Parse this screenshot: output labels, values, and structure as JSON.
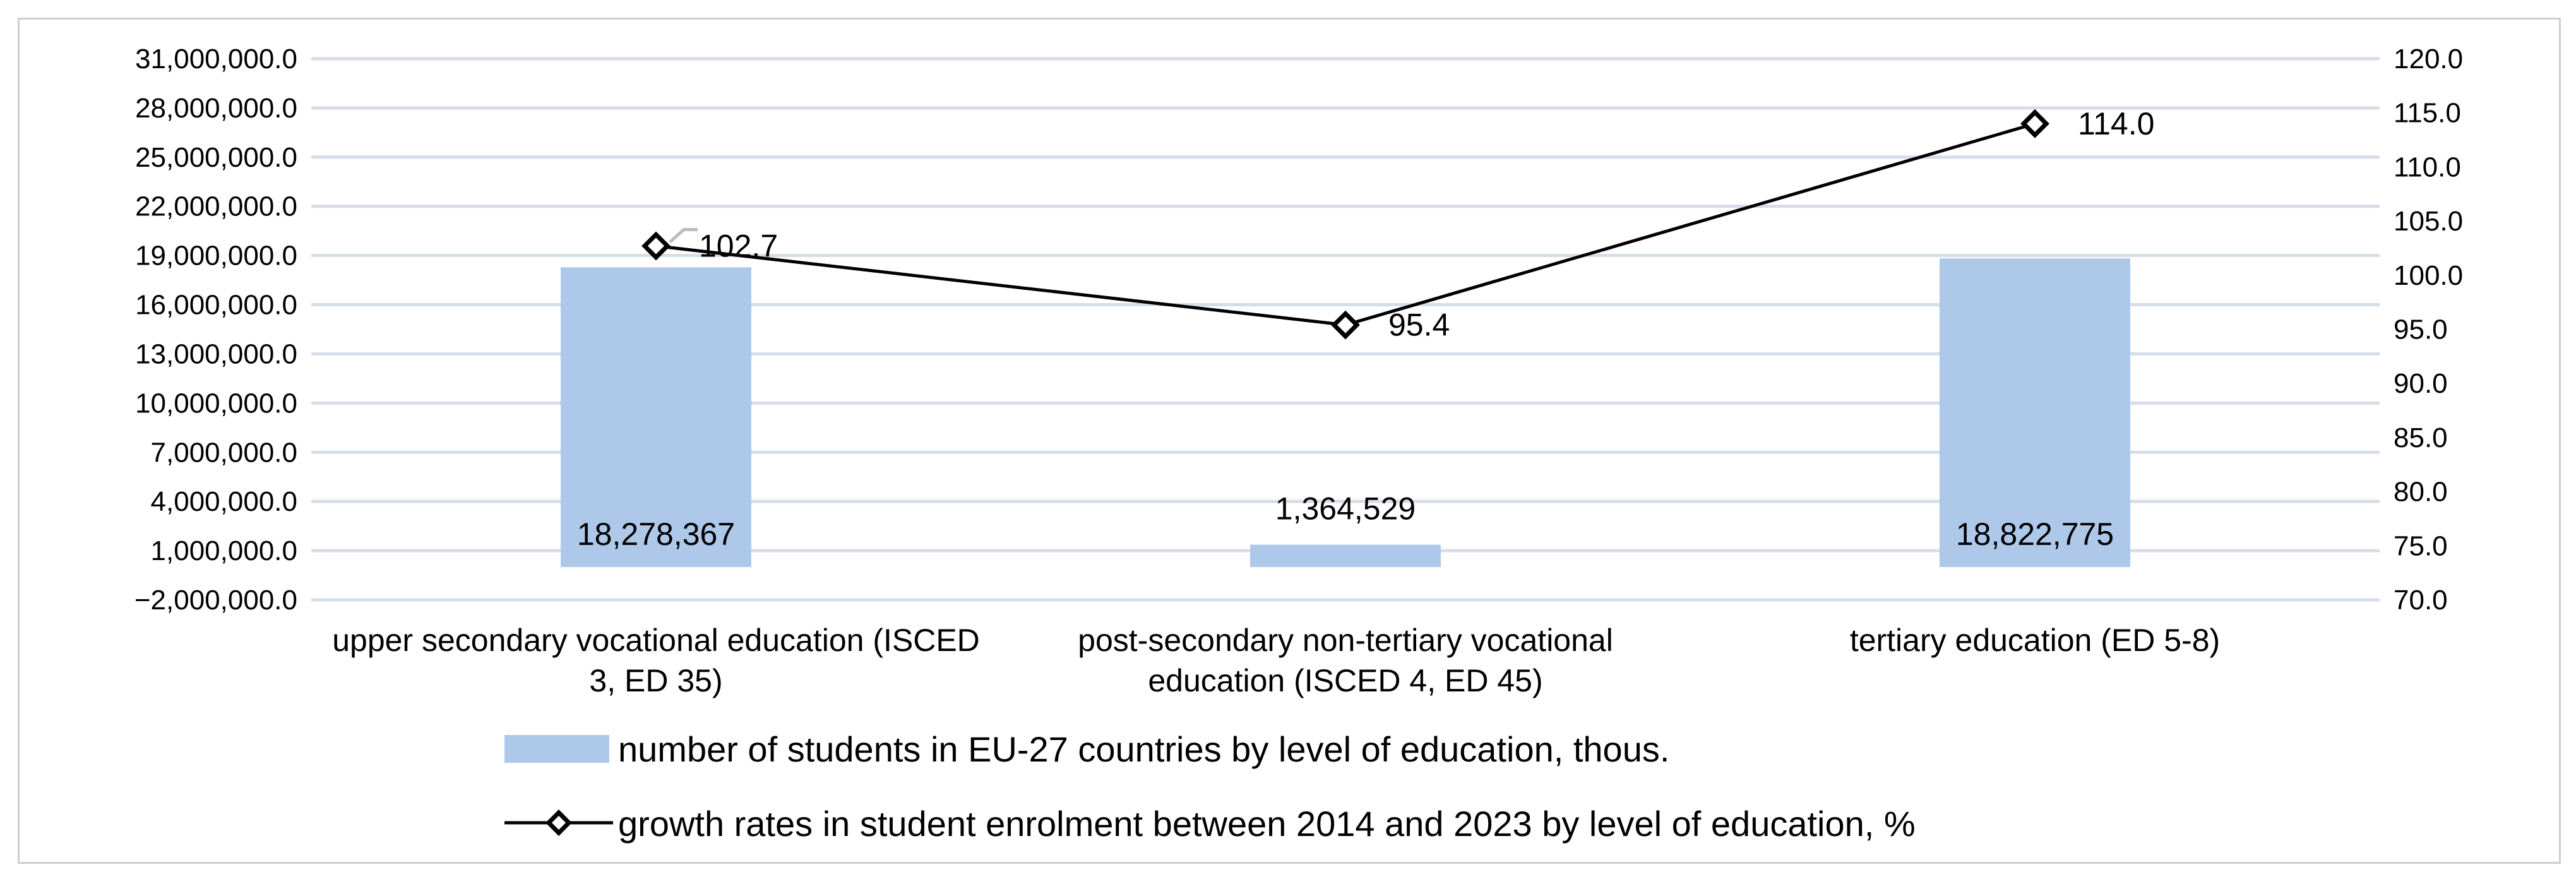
{
  "chart_data": {
    "type": "bar",
    "categories": [
      "upper secondary vocational education (ISCED 3, ED 35)",
      "post-secondary non-tertiary vocational education (ISCED 4, ED 45)",
      "tertiary education  (ED 5-8)"
    ],
    "category_lines": [
      [
        "upper secondary vocational education (ISCED",
        "3, ED 35)"
      ],
      [
        "post-secondary non-tertiary vocational",
        "education (ISCED 4, ED 45)"
      ],
      [
        "tertiary education  (ED 5-8)"
      ]
    ],
    "series": [
      {
        "name": "number of students in EU-27 countries by level of education, thous.",
        "type": "bar",
        "axis": "left",
        "values": [
          18278367,
          1364529,
          18822775
        ],
        "labels": [
          "18,278,367",
          "1,364,529",
          "18,822,775"
        ],
        "color": "#aec8e9"
      },
      {
        "name": "growth rates in student enrolment between 2014 and 2023 by level of education, %",
        "type": "line",
        "axis": "right",
        "values": [
          102.7,
          95.4,
          114.0
        ],
        "labels": [
          "102.7",
          "95.4",
          "114.0"
        ],
        "color": "#000000",
        "marker": "diamond"
      }
    ],
    "y_left": {
      "range": [
        -2000000,
        31000000
      ],
      "ticks": [
        -2000000,
        1000000,
        4000000,
        7000000,
        10000000,
        13000000,
        16000000,
        19000000,
        22000000,
        25000000,
        28000000,
        31000000
      ],
      "tick_labels": [
        "−2,000,000.0",
        "1,000,000.0",
        "4,000,000.0",
        "7,000,000.0",
        "10,000,000.0",
        "13,000,000.0",
        "16,000,000.0",
        "19,000,000.0",
        "22,000,000.0",
        "25,000,000.0",
        "28,000,000.0",
        "31,000,000.0"
      ]
    },
    "y_right": {
      "range": [
        70,
        120
      ],
      "ticks": [
        70,
        75,
        80,
        85,
        90,
        95,
        100,
        105,
        110,
        115,
        120
      ],
      "tick_labels": [
        "70.0",
        "75.0",
        "80.0",
        "85.0",
        "90.0",
        "95.0",
        "100.0",
        "105.0",
        "110.0",
        "115.0",
        "120.0"
      ]
    },
    "grid": true,
    "legend_position": "bottom",
    "title": "",
    "xlabel": "",
    "ylabel": ""
  }
}
